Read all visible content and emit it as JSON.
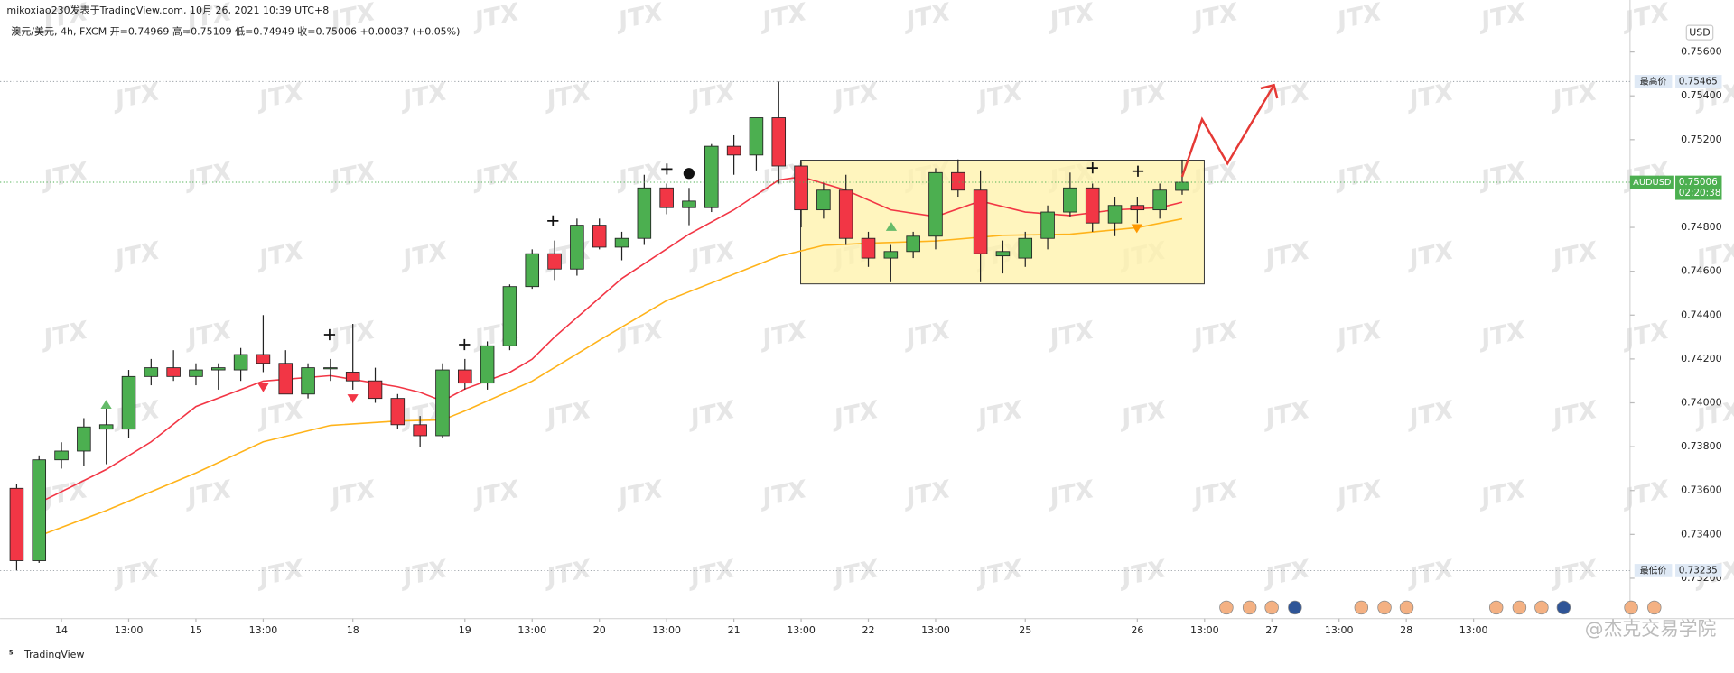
{
  "header": {
    "publisher": "mikoxiao230发表于TradingView.com, 10月 26, 2021 10:39 UTC+8",
    "symbol_line": "澳元/美元, 4h, FXCM  开=0.74969  高=0.75109  低=0.74949  收=0.75006  +0.00037 (+0.05%)"
  },
  "watermark": "JTX",
  "footer": {
    "logo": "TradingView",
    "credit": "@杰克交易学院"
  },
  "chart_data": {
    "type": "candlestick",
    "currency": "USD",
    "up_color": "#4caf50",
    "down_color": "#f23645",
    "open": [
      0.7361,
      0.7328,
      0.7374,
      0.7378,
      0.7388,
      0.7388,
      0.7412,
      0.7416,
      0.7412,
      0.7415,
      0.7415,
      0.7422,
      0.7418,
      0.7404,
      0.7416,
      0.7414,
      0.741,
      0.7402,
      0.739,
      0.7385,
      0.7415,
      0.7409,
      0.7426,
      0.7453,
      0.7468,
      0.7461,
      0.7481,
      0.7471,
      0.7475,
      0.7498,
      0.7489,
      0.7489,
      0.7517,
      0.7513,
      0.753,
      0.7508,
      0.7488,
      0.7497,
      0.7475,
      0.7466,
      0.7469,
      0.7476,
      0.7505,
      0.7497,
      0.7467,
      0.7466,
      0.7475,
      0.7487,
      0.7498,
      0.7482,
      0.749,
      0.7488,
      0.74969
    ],
    "high": [
      0.7363,
      0.7376,
      0.7382,
      0.7393,
      0.74,
      0.7415,
      0.742,
      0.7424,
      0.7418,
      0.7418,
      0.7425,
      0.744,
      0.7424,
      0.7418,
      0.742,
      0.7436,
      0.7416,
      0.7404,
      0.7394,
      0.7418,
      0.742,
      0.7428,
      0.7454,
      0.747,
      0.7474,
      0.7484,
      0.7484,
      0.7478,
      0.7504,
      0.75,
      0.7498,
      0.7518,
      0.7522,
      0.753,
      0.75465,
      0.751,
      0.75,
      0.7504,
      0.7478,
      0.7472,
      0.7478,
      0.7507,
      0.7511,
      0.7506,
      0.7474,
      0.7478,
      0.749,
      0.7505,
      0.75,
      0.7494,
      0.7494,
      0.75,
      0.75109
    ],
    "low": [
      0.73235,
      0.7327,
      0.737,
      0.7371,
      0.7372,
      0.7384,
      0.7408,
      0.741,
      0.7408,
      0.7406,
      0.741,
      0.7414,
      0.7404,
      0.7402,
      0.741,
      0.7406,
      0.74,
      0.7388,
      0.738,
      0.7384,
      0.7406,
      0.7406,
      0.7424,
      0.7452,
      0.7456,
      0.7458,
      0.747,
      0.7465,
      0.7472,
      0.7486,
      0.7481,
      0.7487,
      0.7504,
      0.7506,
      0.75,
      0.748,
      0.7484,
      0.7472,
      0.7462,
      0.7455,
      0.7466,
      0.747,
      0.7494,
      0.7455,
      0.7459,
      0.7462,
      0.747,
      0.7485,
      0.7478,
      0.7476,
      0.7482,
      0.7484,
      0.74949
    ],
    "close": [
      0.7328,
      0.7374,
      0.7378,
      0.7389,
      0.739,
      0.7412,
      0.7416,
      0.7412,
      0.7415,
      0.7416,
      0.7422,
      0.7418,
      0.7404,
      0.7416,
      0.7416,
      0.741,
      0.7402,
      0.739,
      0.7385,
      0.7415,
      0.7409,
      0.7426,
      0.7453,
      0.7468,
      0.7461,
      0.7481,
      0.7471,
      0.7475,
      0.7498,
      0.7489,
      0.7492,
      0.7517,
      0.7513,
      0.753,
      0.7508,
      0.7488,
      0.7497,
      0.7475,
      0.7466,
      0.7469,
      0.7476,
      0.7505,
      0.7497,
      0.7468,
      0.7469,
      0.7475,
      0.7487,
      0.7498,
      0.7482,
      0.749,
      0.7488,
      0.7497,
      0.75006
    ],
    "series": [
      {
        "color": "#f23645",
        "x": [
          1,
          4,
          6,
          8,
          11,
          14,
          17,
          18,
          19,
          20,
          22,
          23,
          24,
          27,
          30,
          32,
          34,
          35,
          37,
          39,
          41,
          43,
          45,
          47,
          49,
          51,
          52
        ],
        "values": [
          0.73544,
          0.73696,
          0.73822,
          0.73983,
          0.74099,
          0.74124,
          0.74073,
          0.74048,
          0.74008,
          0.74063,
          0.74139,
          0.74199,
          0.743,
          0.74567,
          0.74769,
          0.7488,
          0.75016,
          0.75031,
          0.7497,
          0.7488,
          0.74849,
          0.7492,
          0.7487,
          0.74854,
          0.7488,
          0.7489,
          0.74915
        ]
      },
      {
        "color": "#ffb31a",
        "x": [
          1,
          4,
          8,
          11,
          14,
          17,
          19,
          20,
          23,
          26,
          29,
          32,
          34,
          36,
          38,
          41,
          44,
          47,
          50,
          52
        ],
        "values": [
          0.73393,
          0.73509,
          0.7368,
          0.73822,
          0.73897,
          0.73917,
          0.73922,
          0.73963,
          0.74099,
          0.74285,
          0.74466,
          0.74587,
          0.74668,
          0.74718,
          0.74728,
          0.74738,
          0.74764,
          0.74769,
          0.74799,
          0.74839
        ]
      }
    ],
    "xlim": [
      -0.74,
      71.98
    ],
    "xticks": [
      {
        "value": 2,
        "label": "14"
      },
      {
        "value": 5,
        "label": "13:00"
      },
      {
        "value": 8,
        "label": "15"
      },
      {
        "value": 11,
        "label": "13:00"
      },
      {
        "value": 15,
        "label": "18"
      },
      {
        "value": 20,
        "label": "19"
      },
      {
        "value": 23,
        "label": "13:00"
      },
      {
        "value": 26,
        "label": "20"
      },
      {
        "value": 29,
        "label": "13:00"
      },
      {
        "value": 32,
        "label": "21"
      },
      {
        "value": 35,
        "label": "13:00"
      },
      {
        "value": 38,
        "label": "22"
      },
      {
        "value": 41,
        "label": "13:00"
      },
      {
        "value": 45,
        "label": "25"
      },
      {
        "value": 50,
        "label": "26"
      },
      {
        "value": 53,
        "label": "13:00"
      },
      {
        "value": 56,
        "label": "27"
      },
      {
        "value": 59,
        "label": "13:00"
      },
      {
        "value": 62,
        "label": "28"
      },
      {
        "value": 65,
        "label": "13:00"
      }
    ],
    "ylim": [
      0.73016,
      0.75837
    ],
    "yticks": [
      {
        "value": 0.756,
        "label": "0.75600"
      },
      {
        "value": 0.754,
        "label": "0.75400"
      },
      {
        "value": 0.752,
        "label": "0.75200"
      },
      {
        "value": 0.75,
        "label": "0.75000"
      },
      {
        "value": 0.748,
        "label": "0.74800"
      },
      {
        "value": 0.746,
        "label": "0.74600"
      },
      {
        "value": 0.744,
        "label": "0.74400"
      },
      {
        "value": 0.742,
        "label": "0.74200"
      },
      {
        "value": 0.74,
        "label": "0.74000"
      },
      {
        "value": 0.738,
        "label": "0.73800"
      },
      {
        "value": 0.736,
        "label": "0.73600"
      },
      {
        "value": 0.734,
        "label": "0.73400"
      },
      {
        "value": 0.732,
        "label": "0.73200"
      }
    ],
    "price_labels": [
      {
        "label": "最高价",
        "value": 0.75465,
        "color": "#dfe9f5",
        "line": "#9aa0a6"
      },
      {
        "label": "AUDUSD",
        "value": 0.75006,
        "color": "#4caf50",
        "line": "#4caf50",
        "countdown": "02:20:38"
      },
      {
        "label": "最低价",
        "value": 0.73235,
        "color": "#dfe9f5",
        "line": "#9aa0a6"
      }
    ]
  }
}
